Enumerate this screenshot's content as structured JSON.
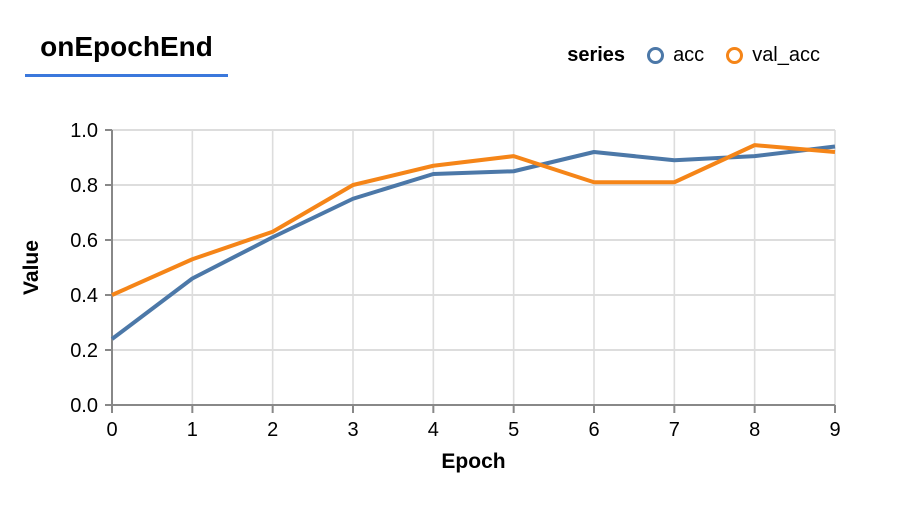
{
  "header": {
    "title": "onEpochEnd"
  },
  "legend": {
    "label": "series",
    "items": [
      {
        "name": "acc",
        "color": "#4c78a8"
      },
      {
        "name": "val_acc",
        "color": "#f58518"
      }
    ]
  },
  "chart_data": {
    "type": "line",
    "title": "onEpochEnd",
    "x": [
      0,
      1,
      2,
      3,
      4,
      5,
      6,
      7,
      8,
      9
    ],
    "series": [
      {
        "name": "acc",
        "color": "#4c78a8",
        "values": [
          0.24,
          0.46,
          0.61,
          0.75,
          0.84,
          0.85,
          0.92,
          0.89,
          0.905,
          0.94
        ]
      },
      {
        "name": "val_acc",
        "color": "#f58518",
        "values": [
          0.4,
          0.53,
          0.63,
          0.8,
          0.87,
          0.905,
          0.81,
          0.81,
          0.945,
          0.92
        ]
      }
    ],
    "xlabel": "Epoch",
    "ylabel": "Value",
    "xlim": [
      0,
      9
    ],
    "ylim": [
      0,
      1
    ],
    "xticks": [
      0,
      1,
      2,
      3,
      4,
      5,
      6,
      7,
      8,
      9
    ],
    "xtick_labels": [
      "0",
      "1",
      "2",
      "3",
      "4",
      "5",
      "6",
      "7",
      "8",
      "9"
    ],
    "yticks": [
      0,
      0.2,
      0.4,
      0.6,
      0.8,
      1.0
    ],
    "ytick_labels": [
      "0.0",
      "0.2",
      "0.4",
      "0.6",
      "0.8",
      "1.0"
    ],
    "grid": true,
    "legend_position": "top-right"
  },
  "colors": {
    "accent_underline": "#3b78dc",
    "axis": "#888888",
    "grid": "#dddddd",
    "text": "#000000",
    "background": "#ffffff"
  }
}
